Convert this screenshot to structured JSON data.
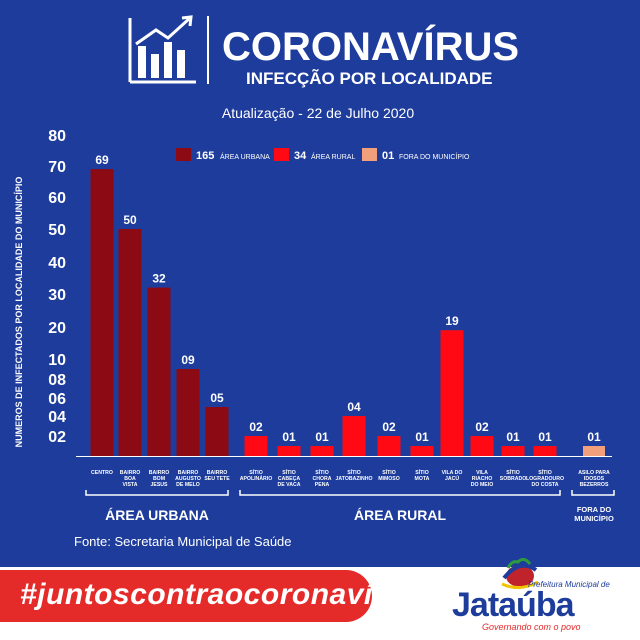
{
  "header": {
    "title": "CORONAVÍRUS",
    "subtitle": "INFECÇÃO POR LOCALIDADE",
    "update": "Atualização - 22 de Julho 2020"
  },
  "chart_data": {
    "type": "bar",
    "ylabel": "NUMEROS DE INFECTADOS POR LOCALIDADE DO MUNICÍPIO",
    "y_ticks": [
      "80",
      "70",
      "60",
      "50",
      "40",
      "30",
      "20",
      "10",
      "08",
      "06",
      "04",
      "02"
    ],
    "legend": [
      {
        "count": "165",
        "label": "ÁREA URBANA",
        "color": "#8b0a14"
      },
      {
        "count": "34",
        "label": "ÁREA RURAL",
        "color": "#ff0a14"
      },
      {
        "count": "01",
        "label": "FORA DO MUNICÍPIO",
        "color": "#f2a07c"
      }
    ],
    "groups": [
      {
        "label": "ÁREA URBANA",
        "color": "#8b0a14",
        "bars": [
          {
            "category": [
              "CENTRO"
            ],
            "value": 69,
            "label": "69"
          },
          {
            "category": [
              "BAIRRO",
              "BOA",
              "VISTA"
            ],
            "value": 50,
            "label": "50"
          },
          {
            "category": [
              "BAIRRO",
              "BOM",
              "JESUS"
            ],
            "value": 32,
            "label": "32"
          },
          {
            "category": [
              "BAIRRO",
              "AUGUSTO",
              "DE MELO"
            ],
            "value": 9,
            "label": "09"
          },
          {
            "category": [
              "BAIRRO",
              "SEU TETE"
            ],
            "value": 5,
            "label": "05"
          }
        ]
      },
      {
        "label": "ÁREA RURAL",
        "color": "#ff0a14",
        "bars": [
          {
            "category": [
              "SÍTIO",
              "APOLINÁRIO"
            ],
            "value": 2,
            "label": "02"
          },
          {
            "category": [
              "SÍTIO",
              "CABEÇA",
              "DE VACA"
            ],
            "value": 1,
            "label": "01"
          },
          {
            "category": [
              "SÍTIO",
              "CHORA",
              "PENA"
            ],
            "value": 1,
            "label": "01"
          },
          {
            "category": [
              "SÍTIO",
              "JATOBAZINHO"
            ],
            "value": 4,
            "label": "04"
          },
          {
            "category": [
              "SÍTIO",
              "MIMOSO"
            ],
            "value": 2,
            "label": "02"
          },
          {
            "category": [
              "SÍTIO",
              "MOTA"
            ],
            "value": 1,
            "label": "01"
          },
          {
            "category": [
              "VILA DO",
              "JACÚ"
            ],
            "value": 19,
            "label": "19"
          },
          {
            "category": [
              "VILA",
              "RIACHO",
              "DO MEIO"
            ],
            "value": 2,
            "label": "02"
          },
          {
            "category": [
              "SÍTIO",
              "SOBRADO"
            ],
            "value": 1,
            "label": "01"
          },
          {
            "category": [
              "SÍTIO",
              "LOGRADOURO",
              "DO COSTA"
            ],
            "value": 1,
            "label": "01"
          }
        ]
      },
      {
        "label": "FORA DO MUNICÍPIO",
        "label_lines": [
          "FORA DO",
          "MUNICÍPIO"
        ],
        "color": "#f2a07c",
        "bars": [
          {
            "category": [
              "ASILO PARA",
              "IDOSOS",
              "BEZERROS"
            ],
            "value": 1,
            "label": "01"
          }
        ]
      }
    ]
  },
  "source": "Fonte: Secretaria Municipal de Saúde",
  "footer": {
    "hashtag": "#juntoscontraocoronavírus",
    "brand_small": "Prefeitura Municipal de",
    "brand_name": "Jataúba",
    "brand_slogan": "Governando com o povo"
  }
}
